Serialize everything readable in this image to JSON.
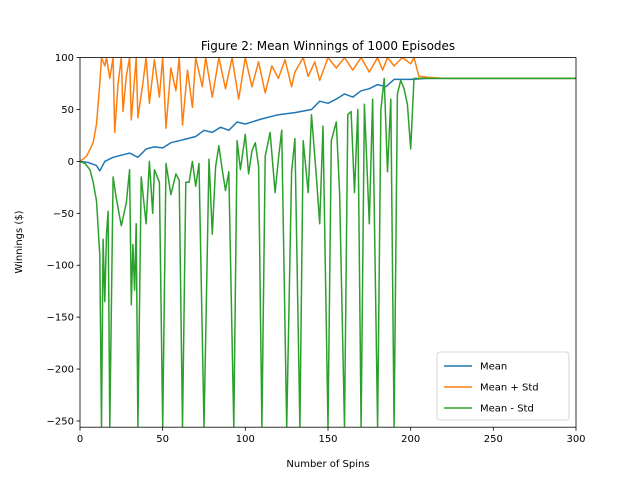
{
  "chart_data": {
    "type": "line",
    "title": "Figure 2: Mean Winnings of 1000 Episodes",
    "xlabel": "Number of Spins",
    "ylabel": "Winnings ($)",
    "xlim": [
      0,
      300
    ],
    "ylim": [
      -256,
      100
    ],
    "grid": false,
    "legend_position": "lower-right",
    "x_ticks": [
      0,
      50,
      100,
      150,
      200,
      250,
      300
    ],
    "x_tick_labels": [
      "0",
      "50",
      "100",
      "150",
      "200",
      "250",
      "300"
    ],
    "y_ticks": [
      100,
      50,
      0,
      -50,
      -100,
      -150,
      -200,
      -250
    ],
    "y_tick_labels": [
      "100",
      "50",
      "0",
      "−50",
      "−100",
      "−150",
      "−200",
      "−250"
    ],
    "series": [
      {
        "name": "Mean",
        "color": "#1f77b4",
        "points": [
          [
            0,
            0
          ],
          [
            5,
            -1
          ],
          [
            10,
            -4
          ],
          [
            12,
            -9
          ],
          [
            15,
            0
          ],
          [
            20,
            4
          ],
          [
            25,
            6
          ],
          [
            30,
            8
          ],
          [
            35,
            4
          ],
          [
            40,
            12
          ],
          [
            45,
            14
          ],
          [
            50,
            13
          ],
          [
            55,
            18
          ],
          [
            60,
            20
          ],
          [
            65,
            22
          ],
          [
            70,
            24
          ],
          [
            75,
            30
          ],
          [
            80,
            28
          ],
          [
            85,
            33
          ],
          [
            90,
            30
          ],
          [
            95,
            38
          ],
          [
            100,
            36
          ],
          [
            110,
            41
          ],
          [
            120,
            45
          ],
          [
            130,
            47
          ],
          [
            140,
            50
          ],
          [
            145,
            58
          ],
          [
            150,
            56
          ],
          [
            155,
            60
          ],
          [
            160,
            65
          ],
          [
            165,
            62
          ],
          [
            170,
            68
          ],
          [
            175,
            70
          ],
          [
            180,
            74
          ],
          [
            185,
            72
          ],
          [
            190,
            79
          ],
          [
            200,
            79
          ],
          [
            210,
            80
          ],
          [
            220,
            80
          ],
          [
            230,
            80
          ],
          [
            240,
            80
          ],
          [
            250,
            80
          ],
          [
            260,
            80
          ],
          [
            270,
            80
          ],
          [
            280,
            80
          ],
          [
            290,
            80
          ],
          [
            300,
            80
          ]
        ]
      },
      {
        "name": "Mean + Std",
        "color": "#ff7f0e",
        "points": [
          [
            0,
            0
          ],
          [
            4,
            5
          ],
          [
            8,
            18
          ],
          [
            10,
            36
          ],
          [
            12,
            75
          ],
          [
            13,
            100
          ],
          [
            15,
            92
          ],
          [
            16,
            100
          ],
          [
            18,
            80
          ],
          [
            20,
            100
          ],
          [
            21,
            28
          ],
          [
            23,
            74
          ],
          [
            25,
            100
          ],
          [
            26,
            48
          ],
          [
            28,
            82
          ],
          [
            30,
            100
          ],
          [
            31,
            40
          ],
          [
            34,
            100
          ],
          [
            35,
            42
          ],
          [
            38,
            75
          ],
          [
            40,
            100
          ],
          [
            42,
            56
          ],
          [
            45,
            98
          ],
          [
            48,
            62
          ],
          [
            50,
            100
          ],
          [
            52,
            32
          ],
          [
            55,
            90
          ],
          [
            58,
            68
          ],
          [
            60,
            100
          ],
          [
            62,
            35
          ],
          [
            65,
            88
          ],
          [
            68,
            52
          ],
          [
            70,
            100
          ],
          [
            74,
            72
          ],
          [
            76,
            100
          ],
          [
            80,
            62
          ],
          [
            84,
            100
          ],
          [
            88,
            70
          ],
          [
            92,
            100
          ],
          [
            96,
            60
          ],
          [
            100,
            100
          ],
          [
            104,
            72
          ],
          [
            108,
            96
          ],
          [
            112,
            66
          ],
          [
            116,
            92
          ],
          [
            120,
            80
          ],
          [
            124,
            98
          ],
          [
            128,
            72
          ],
          [
            130,
            86
          ],
          [
            135,
            100
          ],
          [
            138,
            82
          ],
          [
            142,
            96
          ],
          [
            145,
            78
          ],
          [
            150,
            100
          ],
          [
            155,
            90
          ],
          [
            160,
            100
          ],
          [
            165,
            88
          ],
          [
            170,
            100
          ],
          [
            175,
            86
          ],
          [
            180,
            100
          ],
          [
            183,
            88
          ],
          [
            186,
            100
          ],
          [
            190,
            92
          ],
          [
            195,
            100
          ],
          [
            200,
            94
          ],
          [
            202,
            100
          ],
          [
            205,
            82
          ],
          [
            210,
            81
          ],
          [
            220,
            80
          ],
          [
            300,
            80
          ]
        ]
      },
      {
        "name": "Mean - Std",
        "color": "#2ca02c",
        "points": [
          [
            0,
            0
          ],
          [
            3,
            -2
          ],
          [
            6,
            -8
          ],
          [
            8,
            -20
          ],
          [
            10,
            -38
          ],
          [
            12,
            -90
          ],
          [
            13,
            -256
          ],
          [
            14,
            -75
          ],
          [
            15,
            -135
          ],
          [
            16,
            -70
          ],
          [
            17,
            -48
          ],
          [
            18,
            -256
          ],
          [
            20,
            -15
          ],
          [
            22,
            -36
          ],
          [
            25,
            -62
          ],
          [
            28,
            -40
          ],
          [
            30,
            -8
          ],
          [
            31,
            -138
          ],
          [
            32,
            -80
          ],
          [
            33,
            -124
          ],
          [
            34,
            -60
          ],
          [
            35,
            -256
          ],
          [
            37,
            -15
          ],
          [
            40,
            -60
          ],
          [
            42,
            0
          ],
          [
            44,
            -50
          ],
          [
            45,
            -8
          ],
          [
            48,
            -20
          ],
          [
            50,
            -256
          ],
          [
            52,
            -2
          ],
          [
            55,
            -32
          ],
          [
            58,
            -12
          ],
          [
            60,
            -18
          ],
          [
            62,
            -256
          ],
          [
            64,
            -20
          ],
          [
            66,
            -20
          ],
          [
            68,
            0
          ],
          [
            70,
            -24
          ],
          [
            72,
            -2
          ],
          [
            75,
            -256
          ],
          [
            78,
            2
          ],
          [
            80,
            -70
          ],
          [
            82,
            -5
          ],
          [
            84,
            15
          ],
          [
            86,
            -8
          ],
          [
            88,
            -28
          ],
          [
            90,
            -10
          ],
          [
            93,
            -256
          ],
          [
            95,
            20
          ],
          [
            97,
            -8
          ],
          [
            100,
            26
          ],
          [
            102,
            -12
          ],
          [
            104,
            10
          ],
          [
            106,
            18
          ],
          [
            108,
            -5
          ],
          [
            110,
            -256
          ],
          [
            112,
            5
          ],
          [
            115,
            28
          ],
          [
            118,
            -30
          ],
          [
            120,
            2
          ],
          [
            122,
            30
          ],
          [
            125,
            -256
          ],
          [
            128,
            -10
          ],
          [
            130,
            22
          ],
          [
            133,
            -256
          ],
          [
            135,
            20
          ],
          [
            138,
            -30
          ],
          [
            140,
            45
          ],
          [
            143,
            -15
          ],
          [
            145,
            -60
          ],
          [
            147,
            34
          ],
          [
            150,
            -256
          ],
          [
            152,
            20
          ],
          [
            155,
            38
          ],
          [
            157,
            -30
          ],
          [
            160,
            -256
          ],
          [
            162,
            45
          ],
          [
            164,
            48
          ],
          [
            166,
            -30
          ],
          [
            168,
            50
          ],
          [
            170,
            -256
          ],
          [
            172,
            55
          ],
          [
            175,
            -60
          ],
          [
            177,
            60
          ],
          [
            180,
            -256
          ],
          [
            182,
            50
          ],
          [
            184,
            80
          ],
          [
            186,
            -10
          ],
          [
            188,
            60
          ],
          [
            190,
            -256
          ],
          [
            192,
            65
          ],
          [
            194,
            78
          ],
          [
            196,
            70
          ],
          [
            198,
            55
          ],
          [
            200,
            12
          ],
          [
            202,
            80
          ],
          [
            210,
            80
          ],
          [
            300,
            80
          ]
        ]
      }
    ]
  }
}
